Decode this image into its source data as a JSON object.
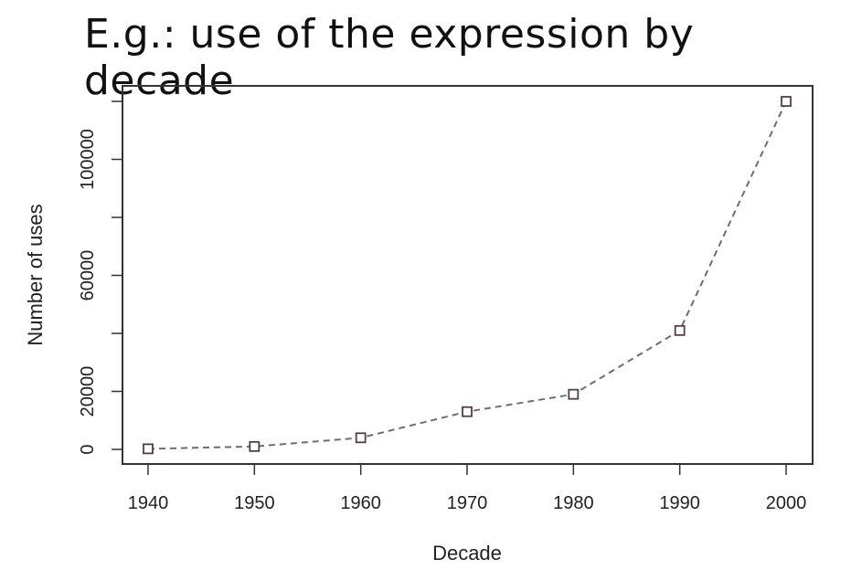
{
  "chart_data": {
    "type": "line",
    "title": "E.g.: use of the expression by decade",
    "xlabel": "Decade",
    "ylabel": "Number of uses",
    "x": [
      1940,
      1950,
      1960,
      1970,
      1980,
      1990,
      2000
    ],
    "series": [
      {
        "values": [
          200,
          1000,
          4000,
          13000,
          19000,
          41000,
          120000
        ]
      }
    ],
    "xticks": [
      "1940",
      "1950",
      "1960",
      "1970",
      "1980",
      "1990",
      "2000"
    ],
    "yticks": [
      "0",
      "20000",
      "60000",
      "100000"
    ],
    "ytick_values": [
      0,
      20000,
      60000,
      100000
    ],
    "minor_ytick_values": [
      40000,
      80000,
      120000
    ],
    "xlim": [
      1940,
      2000
    ],
    "ylim": [
      0,
      120000
    ],
    "line_style": "dashed",
    "marker": "square",
    "line_color": "#6e6e6e",
    "marker_color": "#5a3c3c",
    "grid": false,
    "legend": "none"
  }
}
